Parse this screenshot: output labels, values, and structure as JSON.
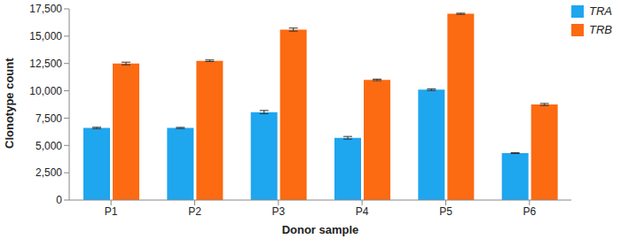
{
  "chart_data": {
    "type": "bar",
    "x_label": "Donor sample",
    "y_label": "Clonotype count",
    "categories": [
      "P1",
      "P2",
      "P3",
      "P4",
      "P5",
      "P6"
    ],
    "series": [
      {
        "name": "TRA",
        "color": "#1ea6ef",
        "values": [
          6600,
          6600,
          8050,
          5700,
          10100,
          4300
        ],
        "errors": [
          60,
          50,
          150,
          120,
          80,
          40
        ]
      },
      {
        "name": "TRB",
        "color": "#fc6a12",
        "values": [
          12500,
          12750,
          15600,
          11000,
          17050,
          8750
        ],
        "errors": [
          120,
          70,
          140,
          70,
          50,
          90
        ]
      }
    ],
    "ylim": [
      0,
      17500
    ],
    "yticks": [
      0,
      {
        "value": 2500,
        "label": "2,500"
      },
      {
        "value": 5000,
        "label": "5,000"
      },
      {
        "value": 7500,
        "label": "7,500"
      },
      {
        "value": 10000,
        "label": "10,000"
      },
      {
        "value": 12500,
        "label": "12,500"
      },
      {
        "value": 15000,
        "label": "15,000"
      },
      {
        "value": 17500,
        "label": "17,500"
      }
    ],
    "grid": false,
    "legend": "right"
  }
}
